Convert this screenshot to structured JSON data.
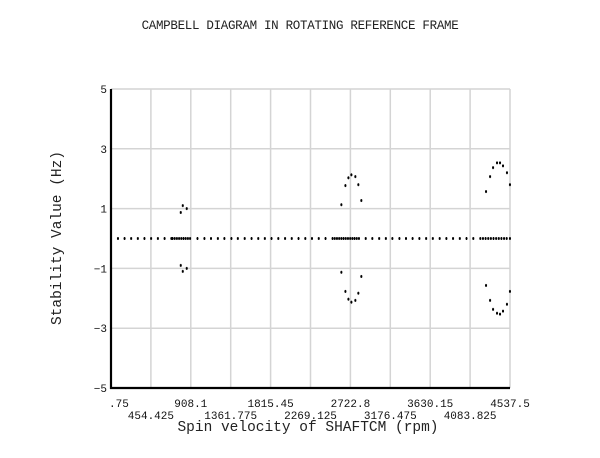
{
  "chart_data": {
    "type": "scatter",
    "title": "CAMPBELL DIAGRAM IN ROTATING REFERENCE FRAME",
    "xlabel": "Spin velocity of SHAFTCM   (rpm)",
    "ylabel": "Stability Value (Hz)",
    "xlim": [
      0.75,
      4537.5
    ],
    "ylim": [
      -5,
      5
    ],
    "grid": true,
    "legend": null,
    "x_ticks": [
      ".75",
      "454.425",
      "908.1",
      "1361.775",
      "1815.45",
      "2269.125",
      "2722.8",
      "3176.475",
      "3630.15",
      "4083.825",
      "4537.5"
    ],
    "x_tick_values": [
      0.75,
      454.425,
      908.1,
      1361.775,
      1815.45,
      2269.125,
      2722.8,
      3176.475,
      3630.15,
      4083.825,
      4537.5
    ],
    "y_ticks": [
      "5",
      "3",
      "1",
      "-1",
      "-3",
      "-5"
    ],
    "y_tick_values": [
      5,
      3,
      1,
      -1,
      -3,
      -5
    ],
    "series": [
      {
        "name": "zero-stability modes",
        "points": [
          [
            80,
            0
          ],
          [
            155,
            0
          ],
          [
            230,
            0
          ],
          [
            306,
            0
          ],
          [
            381,
            0
          ],
          [
            457,
            0
          ],
          [
            534,
            0
          ],
          [
            610,
            0
          ],
          [
            687,
            0
          ],
          [
            700,
            0
          ],
          [
            725,
            0
          ],
          [
            750,
            0
          ],
          [
            775,
            0
          ],
          [
            800,
            0
          ],
          [
            825,
            0
          ],
          [
            850,
            0
          ],
          [
            875,
            0
          ],
          [
            900,
            0
          ],
          [
            984,
            0
          ],
          [
            1063,
            0
          ],
          [
            1138,
            0
          ],
          [
            1216,
            0
          ],
          [
            1290,
            0
          ],
          [
            1370,
            0
          ],
          [
            1443,
            0
          ],
          [
            1521,
            0
          ],
          [
            1599,
            0
          ],
          [
            1675,
            0
          ],
          [
            1750,
            0
          ],
          [
            1826,
            0
          ],
          [
            1903,
            0
          ],
          [
            1980,
            0
          ],
          [
            2056,
            0
          ],
          [
            2133,
            0
          ],
          [
            2210,
            0
          ],
          [
            2286,
            0
          ],
          [
            2363,
            0
          ],
          [
            2440,
            0
          ],
          [
            2520,
            0
          ],
          [
            2545,
            0
          ],
          [
            2570,
            0
          ],
          [
            2595,
            0
          ],
          [
            2620,
            0
          ],
          [
            2645,
            0
          ],
          [
            2670,
            0
          ],
          [
            2695,
            0
          ],
          [
            2720,
            0
          ],
          [
            2745,
            0
          ],
          [
            2770,
            0
          ],
          [
            2795,
            0
          ],
          [
            2820,
            0
          ],
          [
            2897,
            0
          ],
          [
            2972,
            0
          ],
          [
            3050,
            0
          ],
          [
            3126,
            0
          ],
          [
            3200,
            0
          ],
          [
            3280,
            0
          ],
          [
            3355,
            0
          ],
          [
            3430,
            0
          ],
          [
            3507,
            0
          ],
          [
            3584,
            0
          ],
          [
            3660,
            0
          ],
          [
            3738,
            0
          ],
          [
            3814,
            0
          ],
          [
            3890,
            0
          ],
          [
            3967,
            0
          ],
          [
            4043,
            0
          ],
          [
            4120,
            0
          ],
          [
            4200,
            0
          ],
          [
            4230,
            0
          ],
          [
            4260,
            0
          ],
          [
            4290,
            0
          ],
          [
            4320,
            0
          ],
          [
            4350,
            0
          ],
          [
            4380,
            0
          ],
          [
            4410,
            0
          ],
          [
            4440,
            0
          ],
          [
            4470,
            0
          ],
          [
            4500,
            0
          ],
          [
            4537,
            0
          ]
        ]
      },
      {
        "name": "positive branch",
        "points": [
          [
            794,
            0.87
          ],
          [
            817,
            1.1
          ],
          [
            862,
            1.0
          ],
          [
            2620,
            1.13
          ],
          [
            2666,
            1.77
          ],
          [
            2700,
            2.03
          ],
          [
            2734,
            2.13
          ],
          [
            2779,
            2.07
          ],
          [
            2813,
            1.8
          ],
          [
            2847,
            1.27
          ],
          [
            4265,
            1.57
          ],
          [
            4311,
            2.07
          ],
          [
            4345,
            2.37
          ],
          [
            4390,
            2.53
          ],
          [
            4424,
            2.53
          ],
          [
            4458,
            2.43
          ],
          [
            4503,
            2.2
          ],
          [
            4537,
            1.8
          ]
        ]
      },
      {
        "name": "negative branch",
        "points": [
          [
            794,
            -0.9
          ],
          [
            817,
            -1.1
          ],
          [
            862,
            -1.0
          ],
          [
            2620,
            -1.13
          ],
          [
            2666,
            -1.77
          ],
          [
            2700,
            -2.03
          ],
          [
            2734,
            -2.13
          ],
          [
            2779,
            -2.07
          ],
          [
            2813,
            -1.83
          ],
          [
            2847,
            -1.27
          ],
          [
            4265,
            -1.57
          ],
          [
            4311,
            -2.07
          ],
          [
            4345,
            -2.37
          ],
          [
            4390,
            -2.5
          ],
          [
            4424,
            -2.53
          ],
          [
            4458,
            -2.43
          ],
          [
            4503,
            -2.2
          ],
          [
            4537,
            -1.77
          ]
        ]
      }
    ]
  }
}
